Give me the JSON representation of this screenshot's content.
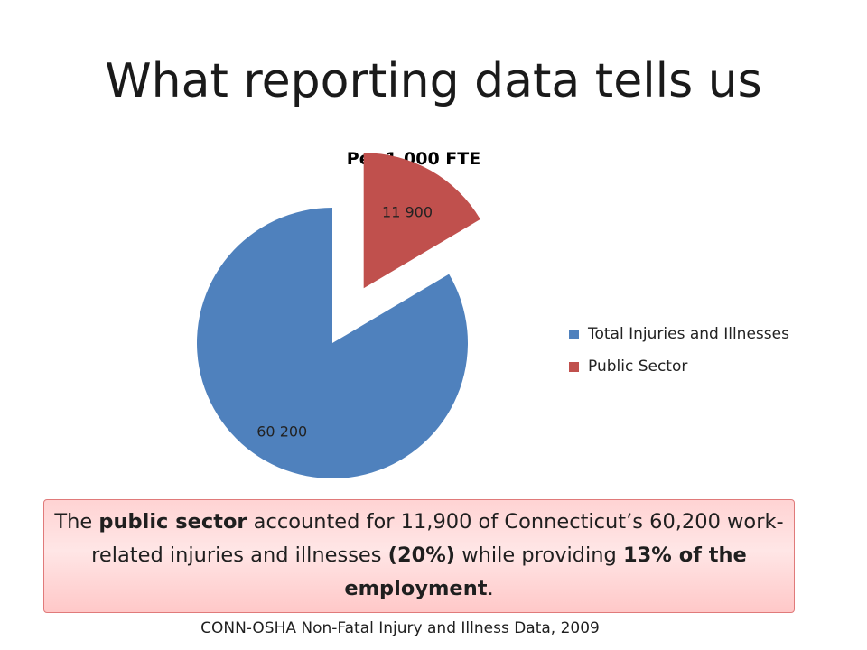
{
  "slide": {
    "title": "What reporting data tells us",
    "source": "CONN-OSHA Non-Fatal Injury and Illness Data, 2009"
  },
  "callout": {
    "p1": "The ",
    "b1": "public sector",
    "p2": " accounted for 11,900 of Connecticut’s 60,200 work-related injuries and illnesses ",
    "b2": "(20%)",
    "p3": " while providing ",
    "b3": "13% of the employment",
    "p4": "."
  },
  "chart_data": {
    "type": "pie",
    "title": "Per 1,000 FTE",
    "legend_position": "right",
    "slices": [
      {
        "name": "Total Injuries and Illnesses",
        "value": 60200,
        "label": "60 200",
        "color": "#4f81bd",
        "exploded": false
      },
      {
        "name": "Public Sector",
        "value": 11900,
        "label": "11 900",
        "color": "#c0504d",
        "exploded": true
      }
    ]
  }
}
